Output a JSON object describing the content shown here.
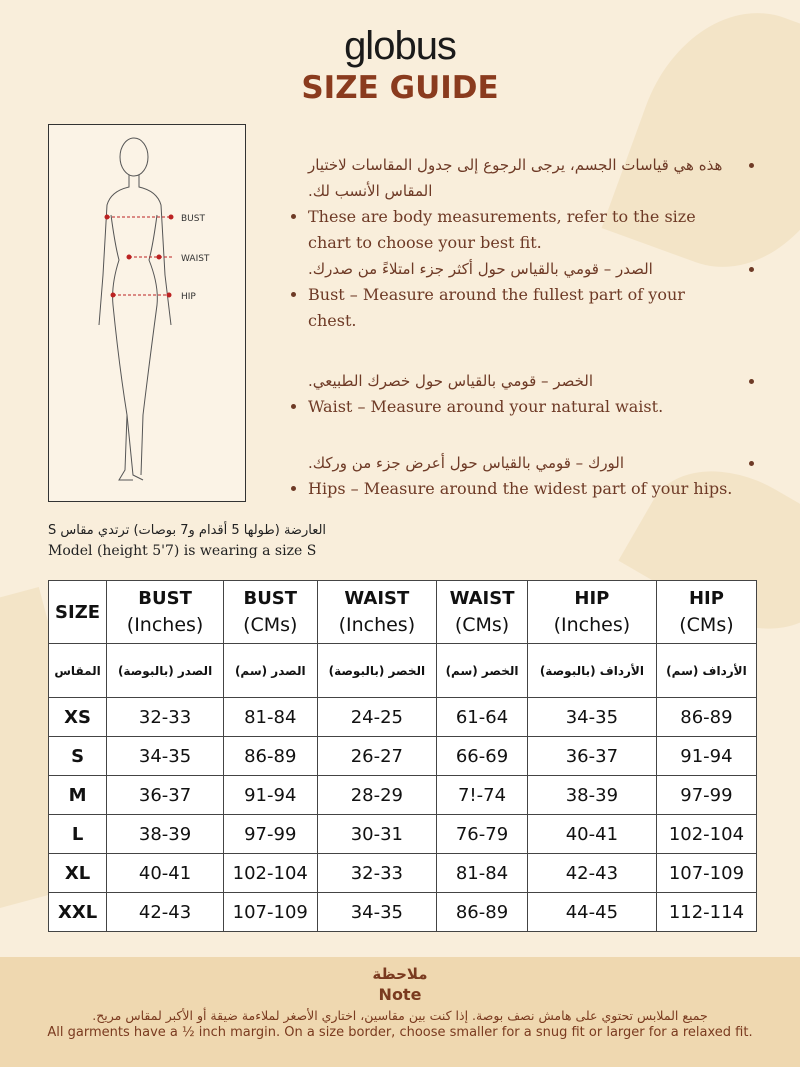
{
  "brand": {
    "logo": "globus",
    "title": "SIZE GUIDE",
    "accent_color": "#8a3b1e"
  },
  "figure": {
    "labels": [
      "BUST",
      "WAIST",
      "HIP"
    ]
  },
  "instructions": [
    {
      "ar": "هذه هي قياسات الجسم، يرجى الرجوع إلى جدول المقاسات لاختيار المقاس الأنسب لك.",
      "en": "These are body measurements, refer to the size chart to choose your best fit."
    },
    {
      "ar": "الصدر – قومي بالقياس حول أكثر جزء امتلاءً من صدرك.",
      "en": "Bust – Measure around the fullest part of your chest."
    },
    {
      "ar": "الخصر – قومي بالقياس حول خصرك الطبيعي.",
      "en": "Waist – Measure around your natural waist."
    },
    {
      "ar": "الورك – قومي بالقياس حول أعرض جزء من وركك.",
      "en": "Hips – Measure around the widest part of your hips."
    }
  ],
  "model": {
    "ar": "العارضة (طولها 5 أقدام و7 بوصات) ترتدي مقاس S",
    "en": "Model (height 5'7) is wearing a size S"
  },
  "table": {
    "headers": [
      {
        "name": "SIZE",
        "unit": ""
      },
      {
        "name": "BUST",
        "unit": "(Inches)"
      },
      {
        "name": "BUST",
        "unit": "(CMs)"
      },
      {
        "name": "WAIST",
        "unit": "(Inches)"
      },
      {
        "name": "WAIST",
        "unit": "(CMs)"
      },
      {
        "name": "HIP",
        "unit": "(Inches)"
      },
      {
        "name": "HIP",
        "unit": "(CMs)"
      }
    ],
    "headers_ar": [
      "المقاس",
      "الصدر (بالبوصة)",
      "الصدر (سم)",
      "الخصر (بالبوصة)",
      "الخصر (سم)",
      "الأرداف (بالبوصة)",
      "الأرداف (سم)"
    ],
    "rows": [
      [
        "XS",
        "32-33",
        "81-84",
        "24-25",
        "61-64",
        "34-35",
        "86-89"
      ],
      [
        "S",
        "34-35",
        "86-89",
        "26-27",
        "66-69",
        "36-37",
        "91-94"
      ],
      [
        "M",
        "36-37",
        "91-94",
        "28-29",
        "7!-74",
        "38-39",
        "97-99"
      ],
      [
        "L",
        "38-39",
        "97-99",
        "30-31",
        "76-79",
        "40-41",
        "102-104"
      ],
      [
        "XL",
        "40-41",
        "102-104",
        "32-33",
        "81-84",
        "42-43",
        "107-109"
      ],
      [
        "XXL",
        "42-43",
        "107-109",
        "34-35",
        "86-89",
        "44-45",
        "112-114"
      ]
    ]
  },
  "note": {
    "title_ar": "ملاحظة",
    "title_en": "Note",
    "text_ar": "جميع الملابس تحتوي على هامش نصف بوصة. إذا كنت بين مقاسين، اختاري الأصغر لملاءمة ضيقة أو الأكبر لمقاس مريح.",
    "text_en": "All garments have a ½ inch margin. On a size border, choose smaller for a snug fit or larger for a relaxed fit."
  }
}
